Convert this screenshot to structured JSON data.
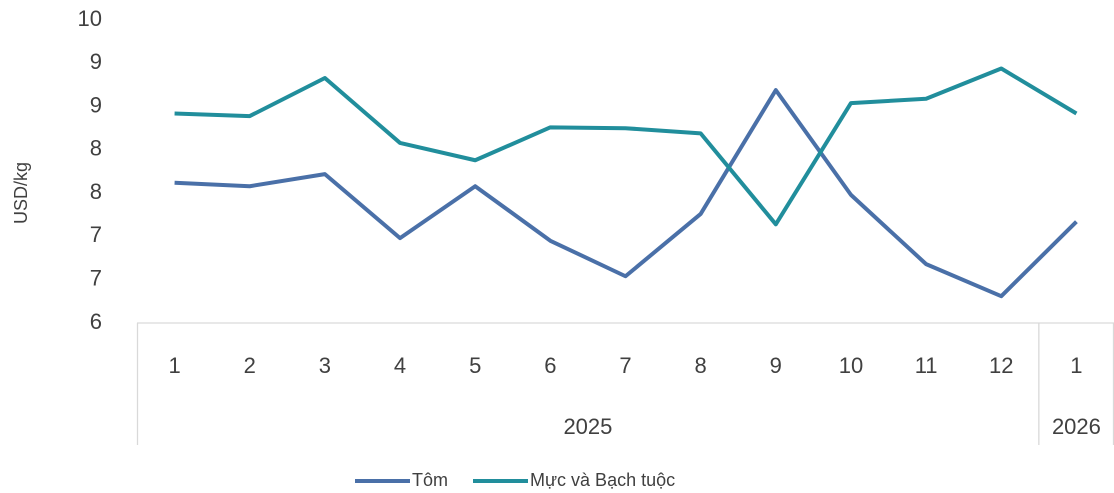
{
  "chart_data": {
    "type": "line",
    "y_label": "USD/kg",
    "categories": [
      "1",
      "2",
      "3",
      "4",
      "5",
      "6",
      "7",
      "8",
      "9",
      "10",
      "11",
      "12",
      "1"
    ],
    "years": [
      "2025",
      "2025",
      "2025",
      "2025",
      "2025",
      "2025",
      "2025",
      "2025",
      "2025",
      "2025",
      "2025",
      "2025",
      "2026"
    ],
    "series": [
      {
        "name": "Tôm",
        "color": "#4a70a8",
        "values": [
          7.62,
          7.58,
          7.72,
          6.98,
          7.58,
          6.95,
          6.54,
          7.26,
          8.69,
          7.48,
          6.68,
          6.31,
          7.17
        ]
      },
      {
        "name": "Mực và Bạch tuộc",
        "color": "#218e9c",
        "values": [
          8.42,
          8.39,
          8.83,
          8.08,
          7.88,
          8.26,
          8.25,
          8.19,
          7.14,
          8.54,
          8.59,
          8.94,
          8.42
        ]
      }
    ],
    "ylim": [
      6,
      9.5
    ],
    "yticks": [
      6,
      {
        "value": 6.5,
        "label": "7"
      },
      7,
      {
        "value": 7.5,
        "label": "8"
      },
      8,
      {
        "value": 8.5,
        "label": "9"
      },
      9,
      {
        "value": 9.5,
        "label": "10"
      }
    ],
    "grid": false,
    "legend": "bottom"
  }
}
